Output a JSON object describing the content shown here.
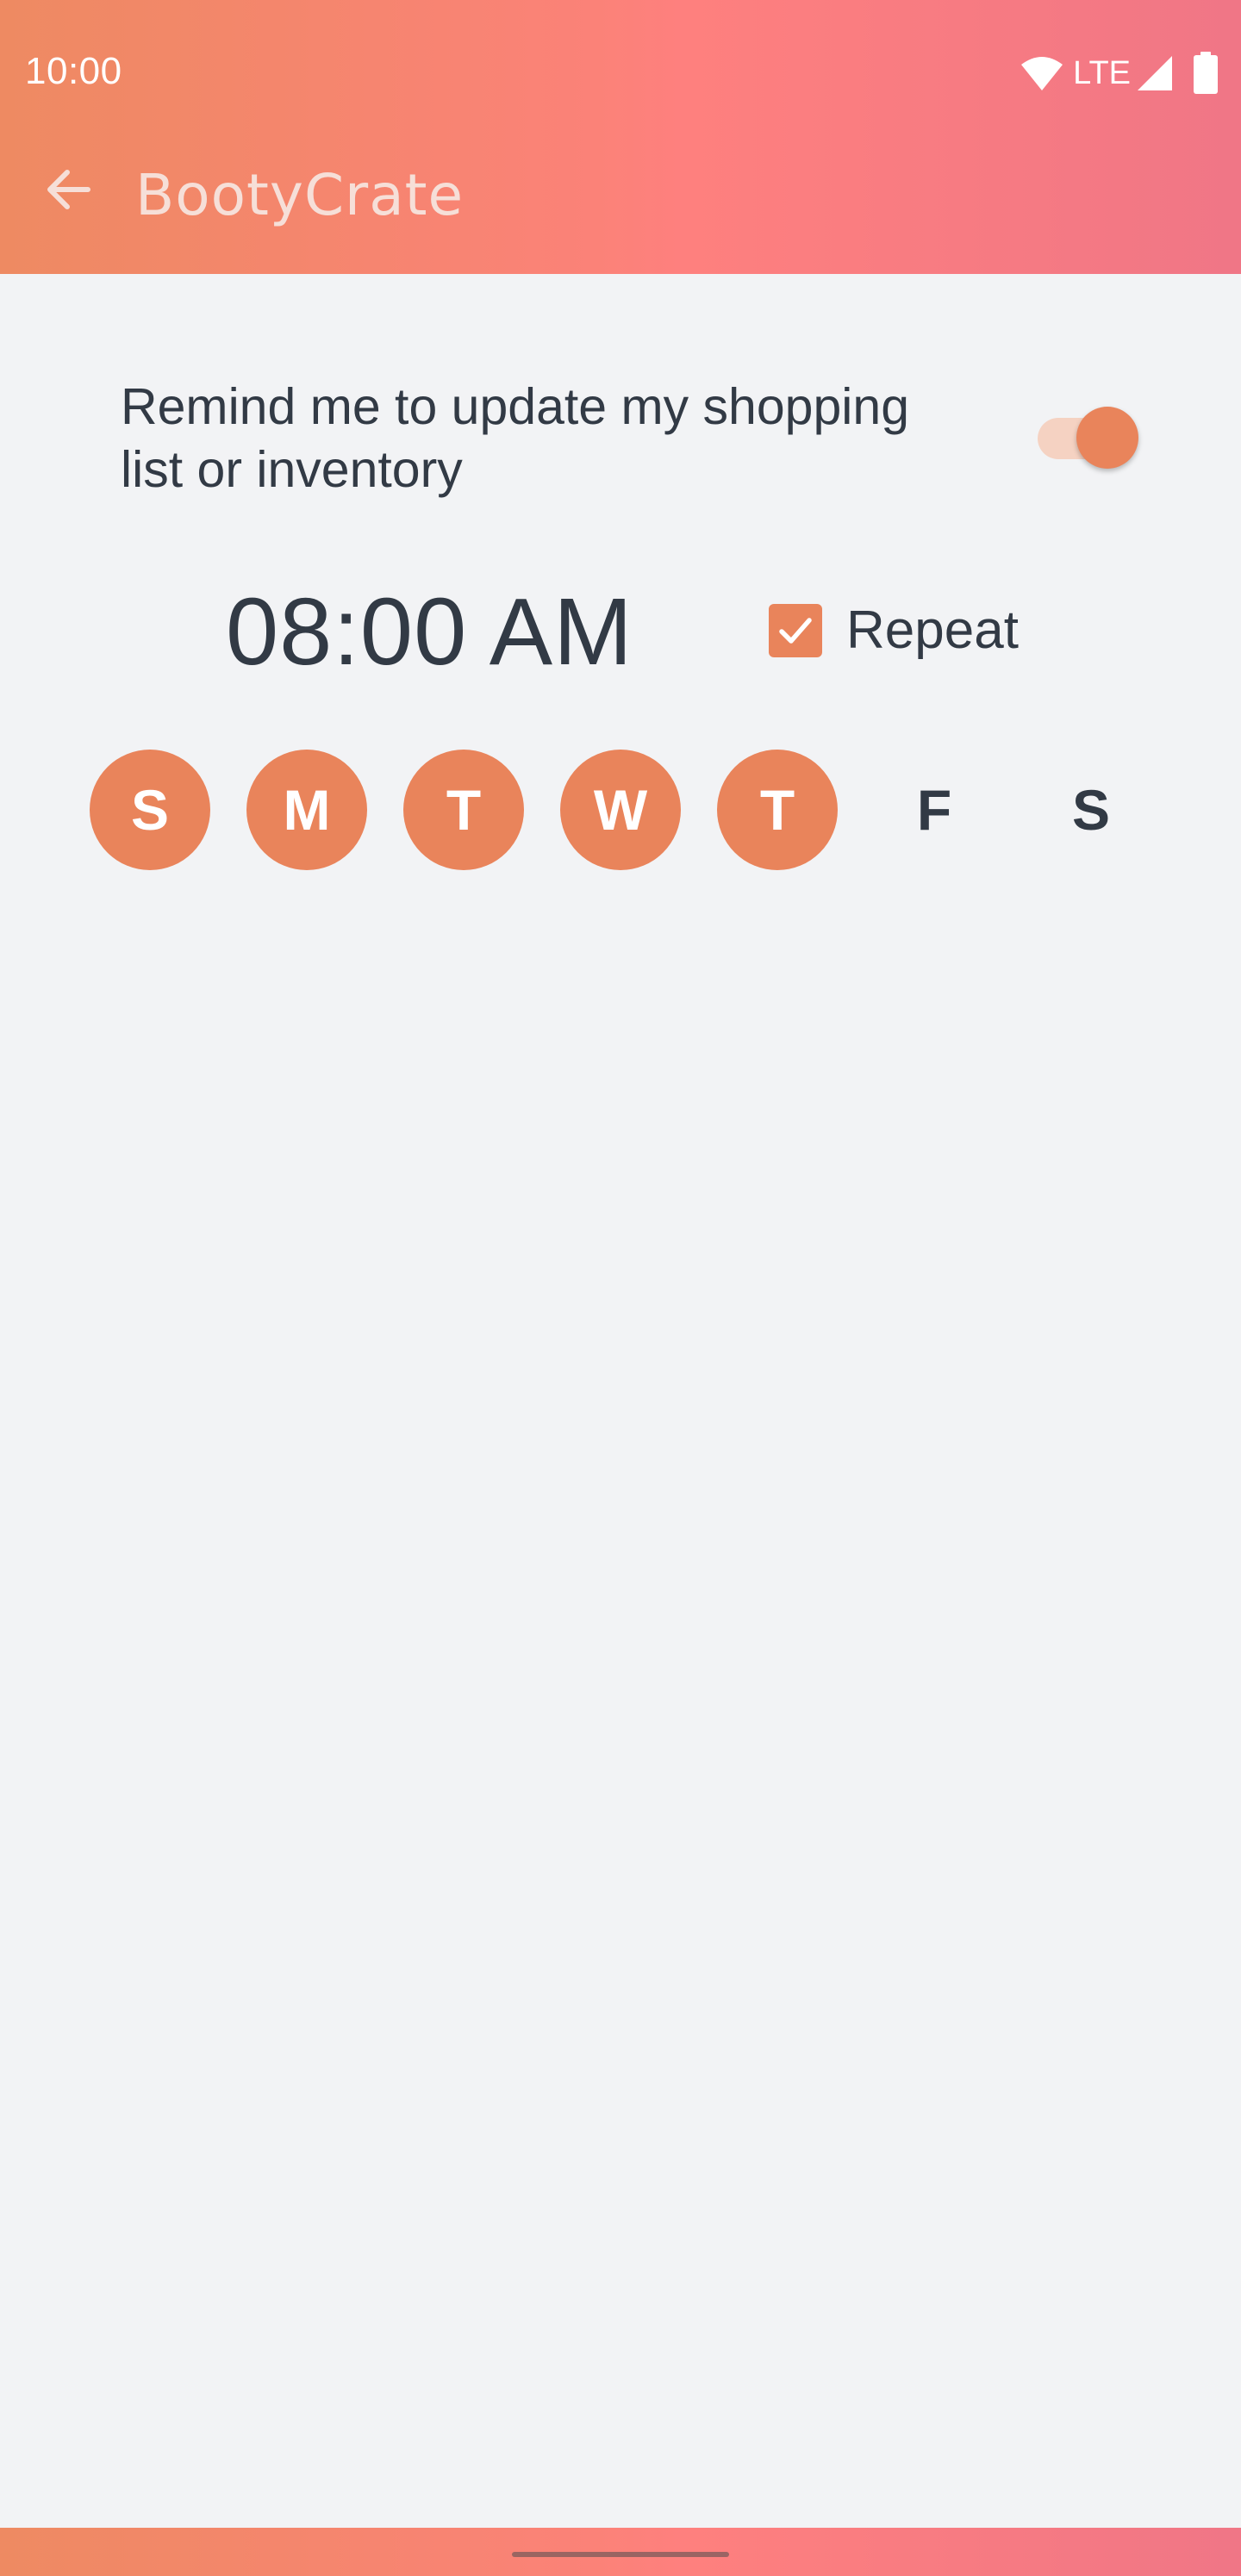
{
  "status_bar": {
    "time": "10:00",
    "network": "LTE",
    "icons": [
      "wifi-icon",
      "signal-icon",
      "battery-icon"
    ]
  },
  "app_bar": {
    "title": "BootyCrate",
    "back_icon": "arrow-back-icon"
  },
  "reminder": {
    "label": "Remind me to update my shopping list or inventory",
    "enabled": true,
    "time": "08:00 AM",
    "repeat_label": "Repeat",
    "repeat_checked": true,
    "days": [
      {
        "letter": "S",
        "selected": true
      },
      {
        "letter": "M",
        "selected": true
      },
      {
        "letter": "T",
        "selected": true
      },
      {
        "letter": "W",
        "selected": true
      },
      {
        "letter": "T",
        "selected": true
      },
      {
        "letter": "F",
        "selected": false
      },
      {
        "letter": "S",
        "selected": false
      }
    ]
  },
  "colors": {
    "accent": "#e9845b",
    "gradient_start": "#ee8a62",
    "gradient_mid": "#fe807e",
    "gradient_end": "#f07686",
    "background": "#f2f3f5",
    "text": "#323a45"
  }
}
